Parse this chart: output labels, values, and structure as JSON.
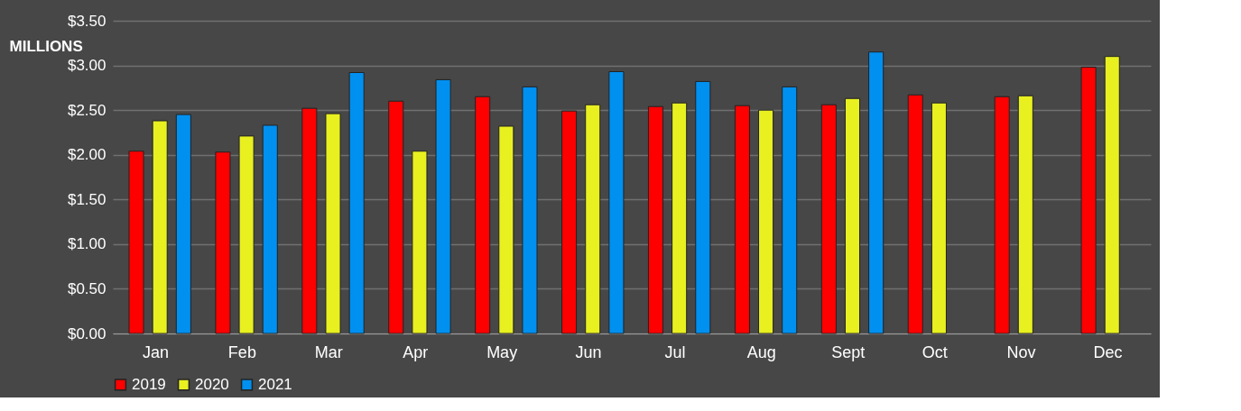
{
  "chart_data": {
    "type": "bar",
    "ylabel": "MILLIONS",
    "categories": [
      "Jan",
      "Feb",
      "Mar",
      "Apr",
      "May",
      "Jun",
      "Jul",
      "Aug",
      "Sept",
      "Oct",
      "Nov",
      "Dec"
    ],
    "series": [
      {
        "name": "2019",
        "color": "#ff0000",
        "values": [
          2.04,
          2.03,
          2.52,
          2.6,
          2.65,
          2.49,
          2.54,
          2.55,
          2.56,
          2.67,
          2.65,
          2.98
        ]
      },
      {
        "name": "2020",
        "color": "#e8f020",
        "values": [
          2.38,
          2.21,
          2.46,
          2.04,
          2.32,
          2.56,
          2.58,
          2.5,
          2.63,
          2.58,
          2.66,
          3.1
        ]
      },
      {
        "name": "2021",
        "color": "#0090f0",
        "values": [
          2.45,
          2.33,
          2.92,
          2.84,
          2.76,
          2.93,
          2.82,
          2.76,
          3.15,
          null,
          null,
          null
        ]
      }
    ],
    "ylim": [
      0,
      3.5
    ],
    "yticks": [
      {
        "value": 0,
        "label": "$0.00"
      },
      {
        "value": 0.5,
        "label": "$0.50"
      },
      {
        "value": 1,
        "label": "$1.00"
      },
      {
        "value": 1.5,
        "label": "$1.50"
      },
      {
        "value": 2,
        "label": "$2.00"
      },
      {
        "value": 2.5,
        "label": "$2.50"
      },
      {
        "value": 3,
        "label": "$3.00"
      },
      {
        "value": 3.5,
        "label": "$3.50"
      }
    ],
    "grid": "y",
    "legend": "bottom"
  }
}
